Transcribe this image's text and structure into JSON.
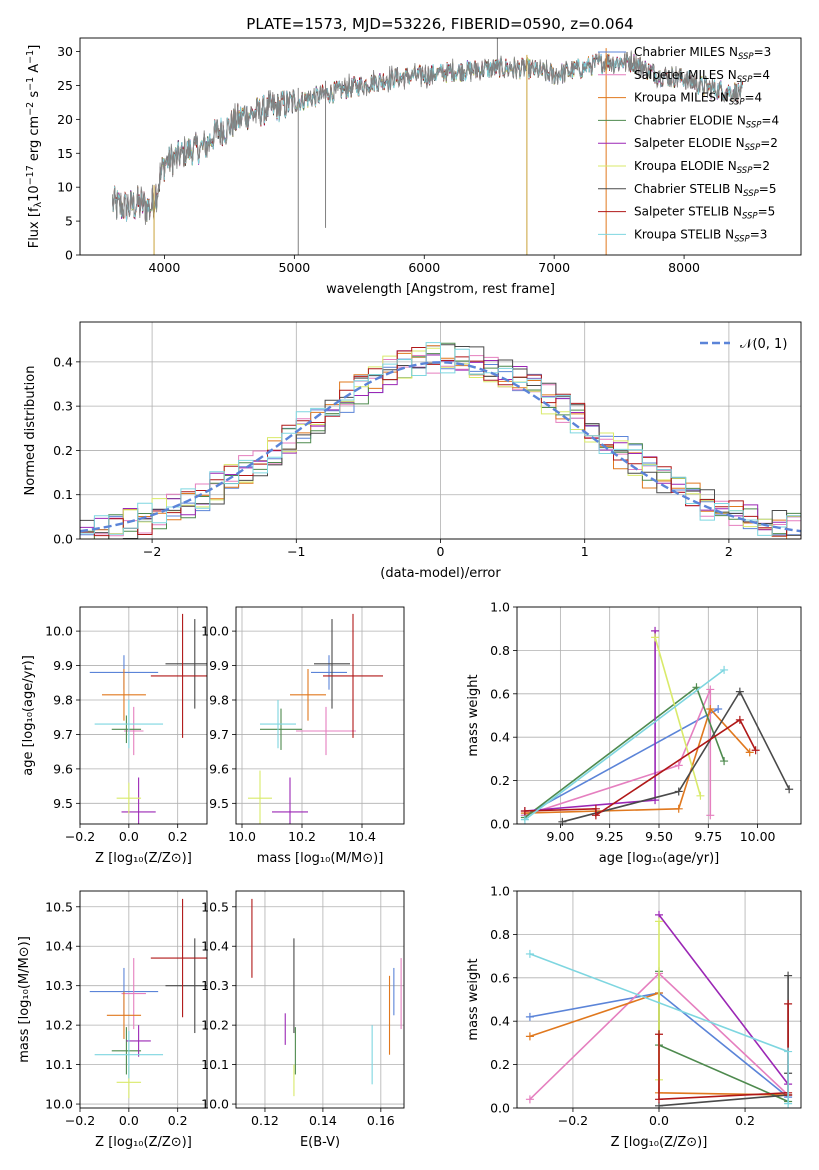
{
  "figure": {
    "title": "PLATE=1573, MJD=53226, FIBERID=0590, z=0.064"
  },
  "models": [
    {
      "name": "Chabrier MILES",
      "n": "3",
      "color": "#5b84d8"
    },
    {
      "name": "Salpeter MILES",
      "n": "4",
      "color": "#e57fbf"
    },
    {
      "name": "Kroupa MILES",
      "n": "4",
      "color": "#e0781e"
    },
    {
      "name": "Chabrier ELODIE",
      "n": "4",
      "color": "#4e8a4e"
    },
    {
      "name": "Salpeter ELODIE",
      "n": "2",
      "color": "#9b27b5"
    },
    {
      "name": "Kroupa ELODIE",
      "n": "2",
      "color": "#d9ea6a"
    },
    {
      "name": "Chabrier STELIB",
      "n": "5",
      "color": "#4a4a4a"
    },
    {
      "name": "Salpeter STELIB",
      "n": "5",
      "color": "#b01818"
    },
    {
      "name": "Kroupa STELIB",
      "n": "3",
      "color": "#7ed6e0"
    }
  ],
  "chart_data": [
    {
      "id": "spectrum",
      "type": "line",
      "xlabel": "wavelength [Angstrom, rest frame]",
      "ylabel_parts": [
        "Flux [f",
        "λ",
        "10",
        "−17",
        " erg cm",
        "−2",
        " s",
        "−1",
        " A",
        "−1",
        "]"
      ],
      "xlim": [
        3350,
        8900
      ],
      "ylim": [
        0,
        32
      ],
      "xticks": [
        4000,
        5000,
        6000,
        7000,
        8000
      ],
      "yticks": [
        0,
        5,
        10,
        15,
        20,
        25,
        30
      ],
      "legend_position": "right",
      "data_color": "#808080",
      "spectrum_start": 3600,
      "spectrum_end": 8450,
      "continuum": {
        "wavelength": [
          3600,
          3700,
          3800,
          3900,
          4000,
          4100,
          4200,
          4300,
          4400,
          4500,
          4600,
          4800,
          5000,
          5200,
          5400,
          5600,
          5800,
          6000,
          6200,
          6400,
          6600,
          6800,
          7000,
          7200,
          7400,
          7600,
          7800,
          8000,
          8200,
          8450
        ],
        "flux": [
          7.5,
          7.0,
          7.5,
          7.0,
          13.5,
          14.5,
          15.5,
          15.8,
          18.0,
          19.0,
          20.5,
          21.5,
          22.5,
          23.5,
          24.5,
          25.5,
          26.2,
          26.5,
          27.0,
          27.3,
          27.6,
          27.5,
          26.5,
          27.5,
          28.5,
          28.5,
          26.5,
          26.0,
          24.5,
          24.0
        ]
      },
      "spikes": [
        {
          "wavelength": 3920,
          "flux": 0
        },
        {
          "wavelength": 5030,
          "flux": 0
        },
        {
          "wavelength": 5240,
          "flux": 4
        },
        {
          "wavelength": 6790,
          "flux": 0
        },
        {
          "wavelength": 7400,
          "flux": 0
        }
      ]
    },
    {
      "id": "residuals",
      "type": "histogram",
      "xlabel": "(data-model)/error",
      "ylabel": "Normed distribution",
      "xlim": [
        -2.5,
        2.5
      ],
      "ylim": [
        0,
        0.49
      ],
      "xticks": [
        -2,
        -1,
        0,
        1,
        2
      ],
      "yticks": [
        0.0,
        0.1,
        0.2,
        0.3,
        0.4
      ],
      "legend": "𝒩(0, 1)",
      "legend_position": "top-right",
      "normal_color": "#5b84d8"
    },
    {
      "id": "age-vs-z",
      "type": "errorbar",
      "xlabel": "Z [log₁₀(Z/Z⊙)]",
      "ylabel": "age  [log₁₀(age/yr)]",
      "xlim": [
        -0.2,
        0.32
      ],
      "ylim": [
        9.44,
        10.07
      ],
      "xticks": [
        -0.2,
        0.0,
        0.2
      ],
      "yticks": [
        9.5,
        9.6,
        9.7,
        9.8,
        9.9,
        10.0
      ],
      "points": [
        {
          "x": -0.02,
          "xerr": 0.14,
          "y": 9.88,
          "yerr": 0.05
        },
        {
          "x": 0.02,
          "xerr": 0.04,
          "y": 9.71,
          "yerr": 0.07
        },
        {
          "x": -0.02,
          "xerr": 0.09,
          "y": 9.815,
          "yerr": 0.075
        },
        {
          "x": -0.01,
          "xerr": 0.06,
          "y": 9.715,
          "yerr": 0.04
        },
        {
          "x": 0.04,
          "xerr": 0.07,
          "y": 9.475,
          "yerr": 0.1
        },
        {
          "x": 0.0,
          "xerr": 0.05,
          "y": 9.515,
          "yerr": 0.045
        },
        {
          "x": 0.27,
          "xerr": 0.12,
          "y": 9.905,
          "yerr": 0.13
        },
        {
          "x": 0.22,
          "xerr": 0.13,
          "y": 9.87,
          "yerr": 0.18
        },
        {
          "x": 0.0,
          "xerr": 0.14,
          "y": 9.73,
          "yerr": 0.07
        }
      ]
    },
    {
      "id": "age-vs-mass",
      "type": "errorbar",
      "xlabel": "mass [log₁₀(M/M⊙)]",
      "ylabel": "",
      "xlim": [
        9.98,
        10.54
      ],
      "ylim": [
        9.44,
        10.07
      ],
      "xticks": [
        10.0,
        10.2,
        10.4
      ],
      "yticks": [
        9.5,
        9.6,
        9.7,
        9.8,
        9.9,
        10.0
      ],
      "points": [
        {
          "x": 10.29,
          "xerr": 0.06,
          "y": 9.88,
          "yerr": 0.05
        },
        {
          "x": 10.28,
          "xerr": 0.1,
          "y": 9.71,
          "yerr": 0.07
        },
        {
          "x": 10.22,
          "xerr": 0.06,
          "y": 9.815,
          "yerr": 0.075
        },
        {
          "x": 10.13,
          "xerr": 0.07,
          "y": 9.715,
          "yerr": 0.06
        },
        {
          "x": 10.16,
          "xerr": 0.06,
          "y": 9.475,
          "yerr": 0.1
        },
        {
          "x": 10.06,
          "xerr": 0.04,
          "y": 9.515,
          "yerr": 0.08
        },
        {
          "x": 10.3,
          "xerr": 0.06,
          "y": 9.905,
          "yerr": 0.13
        },
        {
          "x": 10.37,
          "xerr": 0.1,
          "y": 9.87,
          "yerr": 0.18
        },
        {
          "x": 10.12,
          "xerr": 0.06,
          "y": 9.73,
          "yerr": 0.07
        }
      ]
    },
    {
      "id": "weight-vs-age",
      "type": "line",
      "xlabel": "age  [log₁₀(age/yr)]",
      "ylabel": "mass weight",
      "xlim": [
        8.78,
        10.22
      ],
      "ylim": [
        0,
        1.0
      ],
      "xticks": [
        9.0,
        9.25,
        9.5,
        9.75,
        10.0
      ],
      "yticks": [
        0.0,
        0.2,
        0.4,
        0.6,
        0.8,
        1.0
      ],
      "series": [
        {
          "x": [
            8.82,
            9.8
          ],
          "y": [
            0.04,
            0.53
          ]
        },
        {
          "x": [
            8.82,
            9.6,
            9.76,
            9.76
          ],
          "y": [
            0.04,
            0.27,
            0.62,
            0.04
          ]
        },
        {
          "x": [
            8.82,
            9.6,
            9.76,
            9.96
          ],
          "y": [
            0.05,
            0.07,
            0.53,
            0.33
          ]
        },
        {
          "x": [
            8.82,
            9.69,
            9.83
          ],
          "y": [
            0.03,
            0.63,
            0.29
          ]
        },
        {
          "x": [
            8.82,
            9.48,
            9.48
          ],
          "y": [
            0.06,
            0.11,
            0.89
          ]
        },
        {
          "x": [
            9.48,
            9.71
          ],
          "y": [
            0.86,
            0.13
          ]
        },
        {
          "x": [
            9.01,
            9.6,
            9.91,
            10.16
          ],
          "y": [
            0.01,
            0.15,
            0.61,
            0.16
          ]
        },
        {
          "x": [
            8.82,
            9.18,
            9.18,
            9.91,
            9.99
          ],
          "y": [
            0.06,
            0.07,
            0.04,
            0.48,
            0.34
          ]
        },
        {
          "x": [
            8.82,
            9.83
          ],
          "y": [
            0.02,
            0.71
          ]
        }
      ]
    },
    {
      "id": "mass-vs-z",
      "type": "errorbar",
      "xlabel": "Z [log₁₀(Z/Z⊙)]",
      "ylabel": "mass [log₁₀(M/M⊙)]",
      "xlim": [
        -0.2,
        0.32
      ],
      "ylim": [
        9.99,
        10.54
      ],
      "xticks": [
        -0.2,
        0.0,
        0.2
      ],
      "yticks": [
        10.0,
        10.1,
        10.2,
        10.3,
        10.4,
        10.5
      ],
      "points": [
        {
          "x": -0.02,
          "xerr": 0.14,
          "y": 10.285,
          "yerr": 0.06
        },
        {
          "x": 0.02,
          "xerr": 0.05,
          "y": 10.28,
          "yerr": 0.09
        },
        {
          "x": -0.02,
          "xerr": 0.07,
          "y": 10.225,
          "yerr": 0.06
        },
        {
          "x": -0.01,
          "xerr": 0.06,
          "y": 10.135,
          "yerr": 0.06
        },
        {
          "x": 0.04,
          "xerr": 0.05,
          "y": 10.16,
          "yerr": 0.04
        },
        {
          "x": 0.0,
          "xerr": 0.05,
          "y": 10.055,
          "yerr": 0.04
        },
        {
          "x": 0.27,
          "xerr": 0.12,
          "y": 10.3,
          "yerr": 0.12
        },
        {
          "x": 0.22,
          "xerr": 0.13,
          "y": 10.37,
          "yerr": 0.15
        },
        {
          "x": 0.0,
          "xerr": 0.14,
          "y": 10.125,
          "yerr": 0.06
        }
      ]
    },
    {
      "id": "mass-vs-ebv",
      "type": "errorbar",
      "xlabel": "E(B-V)",
      "ylabel": "",
      "xlim": [
        0.11,
        0.168
      ],
      "ylim": [
        9.99,
        10.54
      ],
      "xticks": [
        0.12,
        0.14,
        0.16
      ],
      "yticks": [
        10.0,
        10.1,
        10.2,
        10.3,
        10.4,
        10.5
      ],
      "points": [
        {
          "x": 0.1645,
          "xerr": 0,
          "y": 10.285,
          "yerr": 0.06
        },
        {
          "x": 0.167,
          "xerr": 0,
          "y": 10.28,
          "yerr": 0.09
        },
        {
          "x": 0.163,
          "xerr": 0,
          "y": 10.225,
          "yerr": 0.1
        },
        {
          "x": 0.1305,
          "xerr": 0,
          "y": 10.135,
          "yerr": 0.06
        },
        {
          "x": 0.127,
          "xerr": 0,
          "y": 10.19,
          "yerr": 0.04
        },
        {
          "x": 0.13,
          "xerr": 0,
          "y": 10.06,
          "yerr": 0.04
        },
        {
          "x": 0.13,
          "xerr": 0,
          "y": 10.3,
          "yerr": 0.12
        },
        {
          "x": 0.1155,
          "xerr": 0,
          "y": 10.42,
          "yerr": 0.1
        },
        {
          "x": 0.157,
          "xerr": 0,
          "y": 10.125,
          "yerr": 0.075
        }
      ]
    },
    {
      "id": "weight-vs-z",
      "type": "line",
      "xlabel": "Z [log₁₀(Z/Z⊙)]",
      "ylabel": "mass weight",
      "xlim": [
        -0.33,
        0.33
      ],
      "ylim": [
        0,
        1.0
      ],
      "xticks": [
        -0.2,
        0.0,
        0.2
      ],
      "yticks": [
        0.0,
        0.2,
        0.4,
        0.6,
        0.8,
        1.0
      ],
      "series": [
        {
          "x": [
            -0.3,
            0.0,
            0.3
          ],
          "y": [
            0.42,
            0.53,
            0.05
          ]
        },
        {
          "x": [
            -0.3,
            0.0,
            0.3
          ],
          "y": [
            0.04,
            0.62,
            0.06
          ]
        },
        {
          "x": [
            -0.3,
            0.0,
            0.0,
            0.3
          ],
          "y": [
            0.33,
            0.53,
            0.07,
            0.06
          ]
        },
        {
          "x": [
            0.0,
            0.0,
            0.3
          ],
          "y": [
            0.63,
            0.29,
            0.03
          ]
        },
        {
          "x": [
            0.0,
            0.3
          ],
          "y": [
            0.89,
            0.11
          ]
        },
        {
          "x": [
            0.0,
            0.0
          ],
          "y": [
            0.86,
            0.13
          ]
        },
        {
          "x": [
            0.0,
            0.3,
            0.3,
            0.3
          ],
          "y": [
            0.01,
            0.06,
            0.61,
            0.16
          ]
        },
        {
          "x": [
            0.0,
            0.0,
            0.3,
            0.3,
            0.3
          ],
          "y": [
            0.34,
            0.04,
            0.07,
            0.48,
            0.06
          ]
        },
        {
          "x": [
            -0.3,
            0.3,
            0.3
          ],
          "y": [
            0.71,
            0.26,
            0.02
          ]
        }
      ]
    }
  ]
}
